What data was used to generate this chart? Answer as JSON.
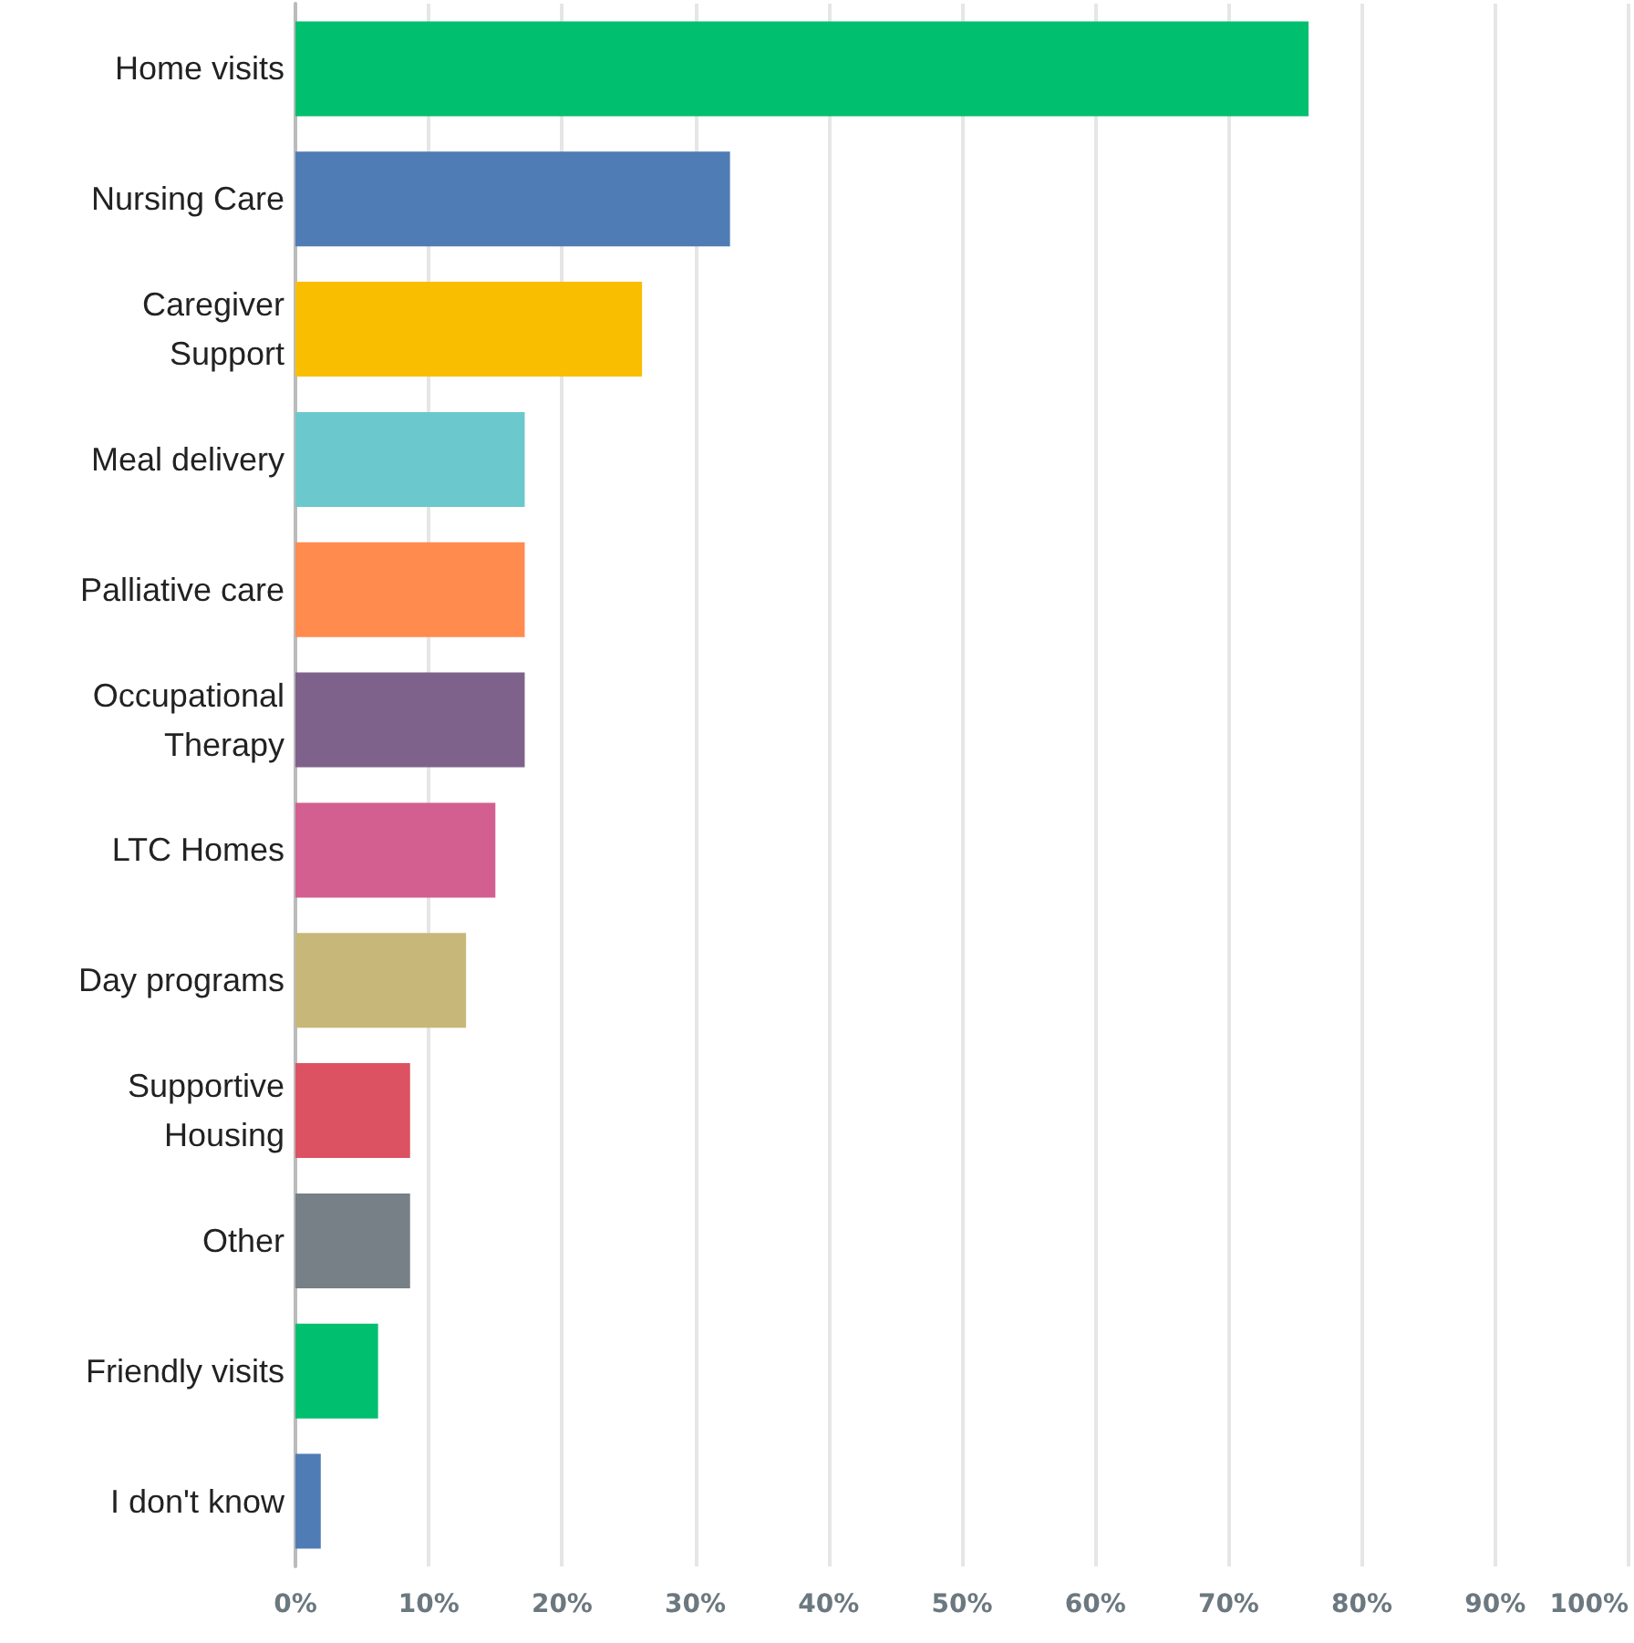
{
  "chart_data": {
    "type": "bar",
    "orientation": "horizontal",
    "categories": [
      "Home visits",
      "Nursing Care",
      "Caregiver\nSupport",
      "Meal delivery",
      "Palliative care",
      "Occupational\nTherapy",
      "LTC Homes",
      "Day programs",
      "Supportive\nHousing",
      "Other",
      "Friendly visits",
      "I don't know"
    ],
    "values": [
      76,
      32.6,
      26,
      17.2,
      17.2,
      17.2,
      15,
      12.8,
      8.6,
      8.6,
      6.2,
      1.9
    ],
    "colors": [
      "#00bf6f",
      "#507cb6",
      "#f9be00",
      "#6bc8cd",
      "#ff8b4f",
      "#7f628b",
      "#d25f90",
      "#c7b879",
      "#dc5262",
      "#768086",
      "#00bf6f",
      "#507cb6"
    ],
    "xlim": [
      0,
      100
    ],
    "xticks": [
      {
        "value": 0,
        "label": "0%"
      },
      {
        "value": 10,
        "label": "10%"
      },
      {
        "value": 20,
        "label": "20%"
      },
      {
        "value": 30,
        "label": "30%"
      },
      {
        "value": 40,
        "label": "40%"
      },
      {
        "value": 50,
        "label": "50%"
      },
      {
        "value": 60,
        "label": "60%"
      },
      {
        "value": 70,
        "label": "70%"
      },
      {
        "value": 80,
        "label": "80%"
      },
      {
        "value": 90,
        "label": "90%"
      },
      {
        "value": 100,
        "label": "100%"
      }
    ],
    "grid": "x"
  }
}
